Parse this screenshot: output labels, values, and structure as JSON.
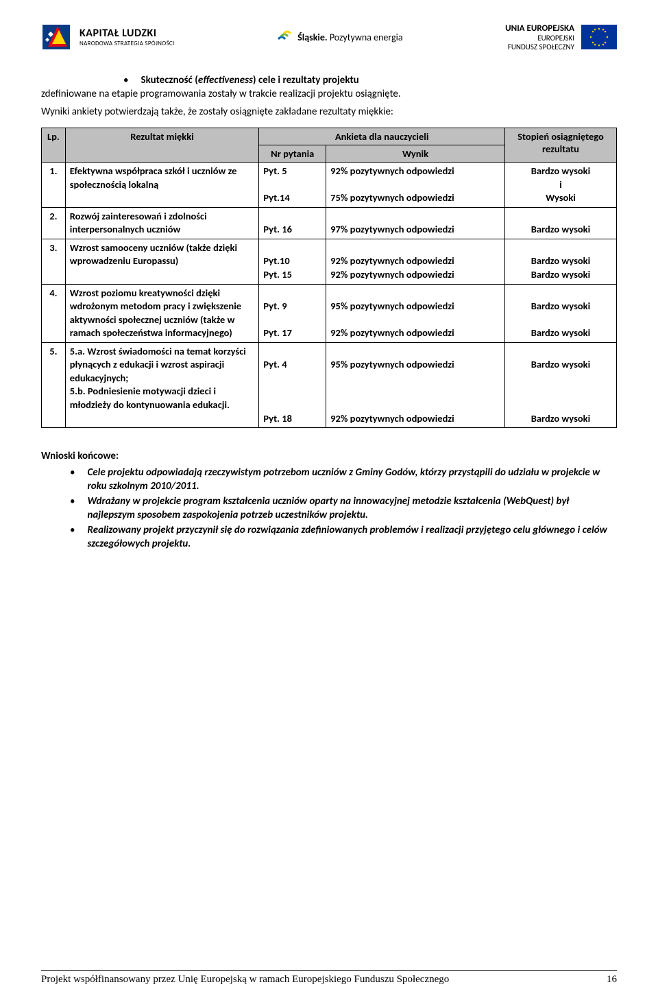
{
  "header": {
    "kl_title": "KAPITAŁ LUDZKI",
    "kl_sub": "NARODOWA STRATEGIA SPÓJNOŚCI",
    "sl_strong": "Śląskie.",
    "sl_rest": " Pozytywna energia",
    "ue_title": "UNIA EUROPEJSKA",
    "ue_line1": "EUROPEJSKI",
    "ue_line2": "FUNDUSZ SPOŁECZNY"
  },
  "intro": {
    "bullet_bold": "Skuteczność (",
    "bullet_italic": "effectiveness",
    "bullet_rest": ") cele i rezultaty projektu",
    "line2": "zdefiniowane na etapie programowania zostały w trakcie realizacji projektu osiągnięte.",
    "para": "Wyniki ankiety potwierdzają także, że zostały osiągnięte zakładane rezultaty miękkie:"
  },
  "table": {
    "h_lp": "Lp.",
    "h_rez": "Rezultat miękki",
    "h_ank": "Ankieta dla nauczycieli",
    "h_nrp": "Nr pytania",
    "h_wyn": "Wynik",
    "h_stop": "Stopień osiągniętego rezultatu",
    "rows": [
      {
        "lp": "1.",
        "rez": "Efektywna współpraca szkół i uczniów ze społecznością lokalną",
        "nrpyt": "Pyt. 5\n\nPyt.14",
        "wynik": "92% pozytywnych odpowiedzi\n\n75% pozytywnych odpowiedzi",
        "stop": "Bardzo wysoki\ni\nWysoki"
      },
      {
        "lp": "2.",
        "rez": "Rozwój zainteresowań i zdolności interpersonalnych uczniów",
        "nrpyt": "\nPyt. 16",
        "wynik": "\n97% pozytywnych odpowiedzi",
        "stop": "\nBardzo wysoki"
      },
      {
        "lp": "3.",
        "rez": "Wzrost samooceny uczniów (także dzięki wprowadzeniu Europassu)",
        "nrpyt": "\nPyt.10\nPyt. 15",
        "wynik": "\n92% pozytywnych odpowiedzi\n92% pozytywnych odpowiedzi",
        "stop": "\nBardzo wysoki\nBardzo wysoki"
      },
      {
        "lp": "4.",
        "rez": "Wzrost poziomu kreatywności dzięki wdrożonym metodom pracy i zwiększenie aktywności społecznej uczniów (także w ramach społeczeństwa informacyjnego)",
        "nrpyt": "\nPyt. 9\n\nPyt. 17",
        "wynik": "\n95% pozytywnych odpowiedzi\n\n92% pozytywnych odpowiedzi",
        "stop": "\nBardzo wysoki\n\nBardzo wysoki"
      },
      {
        "lp": "5.",
        "rez": "5.a. Wzrost świadomości na temat korzyści płynących z edukacji i wzrost aspiracji edukacyjnych;\n5.b.  Podniesienie motywacji dzieci i młodzieży do kontynuowania edukacji.",
        "nrpyt": "\nPyt. 4\n\n\n\nPyt. 18",
        "wynik": "\n95% pozytywnych odpowiedzi\n\n\n\n92% pozytywnych odpowiedzi",
        "stop": "\nBardzo wysoki\n\n\n\nBardzo wysoki"
      }
    ]
  },
  "conclusions": {
    "title": "Wnioski końcowe:",
    "items": [
      "Cele projektu odpowiadają rzeczywistym potrzebom uczniów z Gminy Godów, którzy przystąpili do udziału w projekcie w roku szkolnym 2010/2011.",
      "Wdrażany w projekcie program kształcenia uczniów oparty na innowacyjnej metodzie kształcenia (WebQuest) był najlepszym sposobem zaspokojenia potrzeb uczestników projektu.",
      "Realizowany projekt przyczynił się do rozwiązania zdefiniowanych problemów i realizacji przyjętego celu głównego i celów szczegółowych projektu."
    ]
  },
  "footer": {
    "text": "Projekt współfinansowany przez Unię Europejską w ramach Europejskiego Funduszu Społecznego",
    "page": "16"
  }
}
